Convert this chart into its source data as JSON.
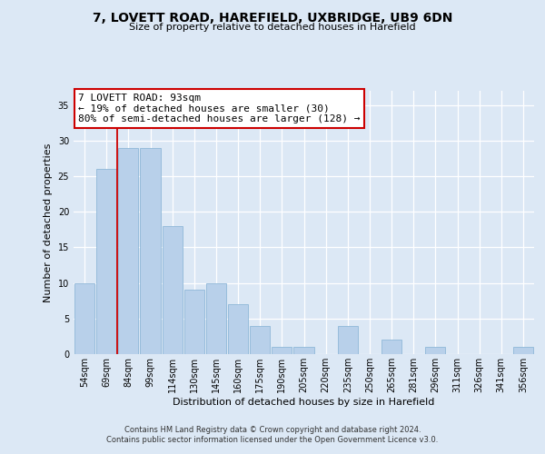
{
  "title_line1": "7, LOVETT ROAD, HAREFIELD, UXBRIDGE, UB9 6DN",
  "title_line2": "Size of property relative to detached houses in Harefield",
  "xlabel": "Distribution of detached houses by size in Harefield",
  "ylabel": "Number of detached properties",
  "categories": [
    "54sqm",
    "69sqm",
    "84sqm",
    "99sqm",
    "114sqm",
    "130sqm",
    "145sqm",
    "160sqm",
    "175sqm",
    "190sqm",
    "205sqm",
    "220sqm",
    "235sqm",
    "250sqm",
    "265sqm",
    "281sqm",
    "296sqm",
    "311sqm",
    "326sqm",
    "341sqm",
    "356sqm"
  ],
  "values": [
    10,
    26,
    29,
    29,
    18,
    9,
    10,
    7,
    4,
    1,
    1,
    0,
    4,
    0,
    2,
    0,
    1,
    0,
    0,
    0,
    1
  ],
  "bar_color": "#b8d0ea",
  "bar_edge_color": "#8fb8d8",
  "red_line_x": 1.5,
  "annotation_line1": "7 LOVETT ROAD: 93sqm",
  "annotation_line2": "← 19% of detached houses are smaller (30)",
  "annotation_line3": "80% of semi-detached houses are larger (128) →",
  "annotation_box_facecolor": "#ffffff",
  "annotation_box_edgecolor": "#cc0000",
  "ylim": [
    0,
    37
  ],
  "yticks": [
    0,
    5,
    10,
    15,
    20,
    25,
    30,
    35
  ],
  "bg_color": "#dce8f5",
  "fig_bg_color": "#dce8f5",
  "footer_line1": "Contains HM Land Registry data © Crown copyright and database right 2024.",
  "footer_line2": "Contains public sector information licensed under the Open Government Licence v3.0.",
  "title_fontsize": 10,
  "subtitle_fontsize": 8,
  "ylabel_fontsize": 8,
  "xlabel_fontsize": 8,
  "tick_fontsize": 7,
  "footer_fontsize": 6,
  "ann_fontsize": 8
}
